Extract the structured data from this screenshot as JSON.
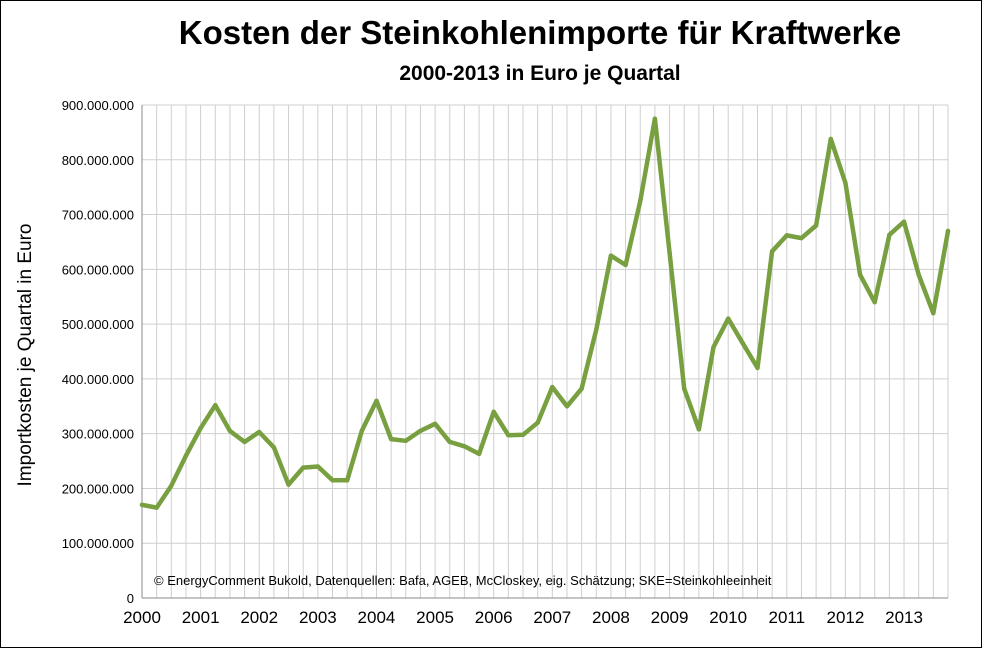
{
  "chart_data": {
    "type": "line",
    "title": "Kosten der Steinkohlenimporte für Kraftwerke",
    "subtitle": "2000-2013 in Euro je Quartal",
    "xlabel": "",
    "ylabel": "Importkosten je Quartal in Euro",
    "ylim": [
      0,
      900000000
    ],
    "y_ticks": [
      {
        "value": 0,
        "label": "0"
      },
      {
        "value": 100000000,
        "label": "100.000.000"
      },
      {
        "value": 200000000,
        "label": "200.000.000"
      },
      {
        "value": 300000000,
        "label": "300.000.000"
      },
      {
        "value": 400000000,
        "label": "400.000.000"
      },
      {
        "value": 500000000,
        "label": "500.000.000"
      },
      {
        "value": 600000000,
        "label": "600.000.000"
      },
      {
        "value": 700000000,
        "label": "700.000.000"
      },
      {
        "value": 800000000,
        "label": "800.000.000"
      },
      {
        "value": 900000000,
        "label": "900.000.000"
      }
    ],
    "x_year_labels": [
      "2000",
      "2001",
      "2002",
      "2003",
      "2004",
      "2005",
      "2006",
      "2007",
      "2008",
      "2009",
      "2010",
      "2011",
      "2012",
      "2013"
    ],
    "quarters_per_year": 4,
    "grid": true,
    "line_color": "#78a040",
    "annotation": "© EnergyComment Bukold, Datenquellen: Bafa, AGEB, McCloskey, eig. Schätzung; SKE=Steinkohleeinheit",
    "x": [
      "2000-Q1",
      "2000-Q2",
      "2000-Q3",
      "2000-Q4",
      "2001-Q1",
      "2001-Q2",
      "2001-Q3",
      "2001-Q4",
      "2002-Q1",
      "2002-Q2",
      "2002-Q3",
      "2002-Q4",
      "2003-Q1",
      "2003-Q2",
      "2003-Q3",
      "2003-Q4",
      "2004-Q1",
      "2004-Q2",
      "2004-Q3",
      "2004-Q4",
      "2005-Q1",
      "2005-Q2",
      "2005-Q3",
      "2005-Q4",
      "2006-Q1",
      "2006-Q2",
      "2006-Q3",
      "2006-Q4",
      "2007-Q1",
      "2007-Q2",
      "2007-Q3",
      "2007-Q4",
      "2008-Q1",
      "2008-Q2",
      "2008-Q3",
      "2008-Q4",
      "2009-Q1",
      "2009-Q2",
      "2009-Q3",
      "2009-Q4",
      "2010-Q1",
      "2010-Q2",
      "2010-Q3",
      "2010-Q4",
      "2011-Q1",
      "2011-Q2",
      "2011-Q3",
      "2011-Q4",
      "2012-Q1",
      "2012-Q2",
      "2012-Q3",
      "2012-Q4",
      "2013-Q1",
      "2013-Q2",
      "2013-Q3",
      "2013-Q4"
    ],
    "values": [
      170000000,
      165000000,
      205000000,
      260000000,
      310000000,
      352000000,
      305000000,
      285000000,
      303000000,
      275000000,
      207000000,
      238000000,
      240000000,
      215000000,
      215000000,
      305000000,
      360000000,
      290000000,
      287000000,
      305000000,
      318000000,
      285000000,
      277000000,
      263000000,
      340000000,
      297000000,
      298000000,
      320000000,
      385000000,
      350000000,
      382000000,
      490000000,
      625000000,
      608000000,
      725000000,
      875000000,
      630000000,
      382000000,
      308000000,
      458000000,
      510000000,
      465000000,
      420000000,
      633000000,
      662000000,
      657000000,
      680000000,
      838000000,
      758000000,
      590000000,
      540000000,
      663000000,
      687000000,
      590000000,
      520000000,
      670000000
    ]
  }
}
